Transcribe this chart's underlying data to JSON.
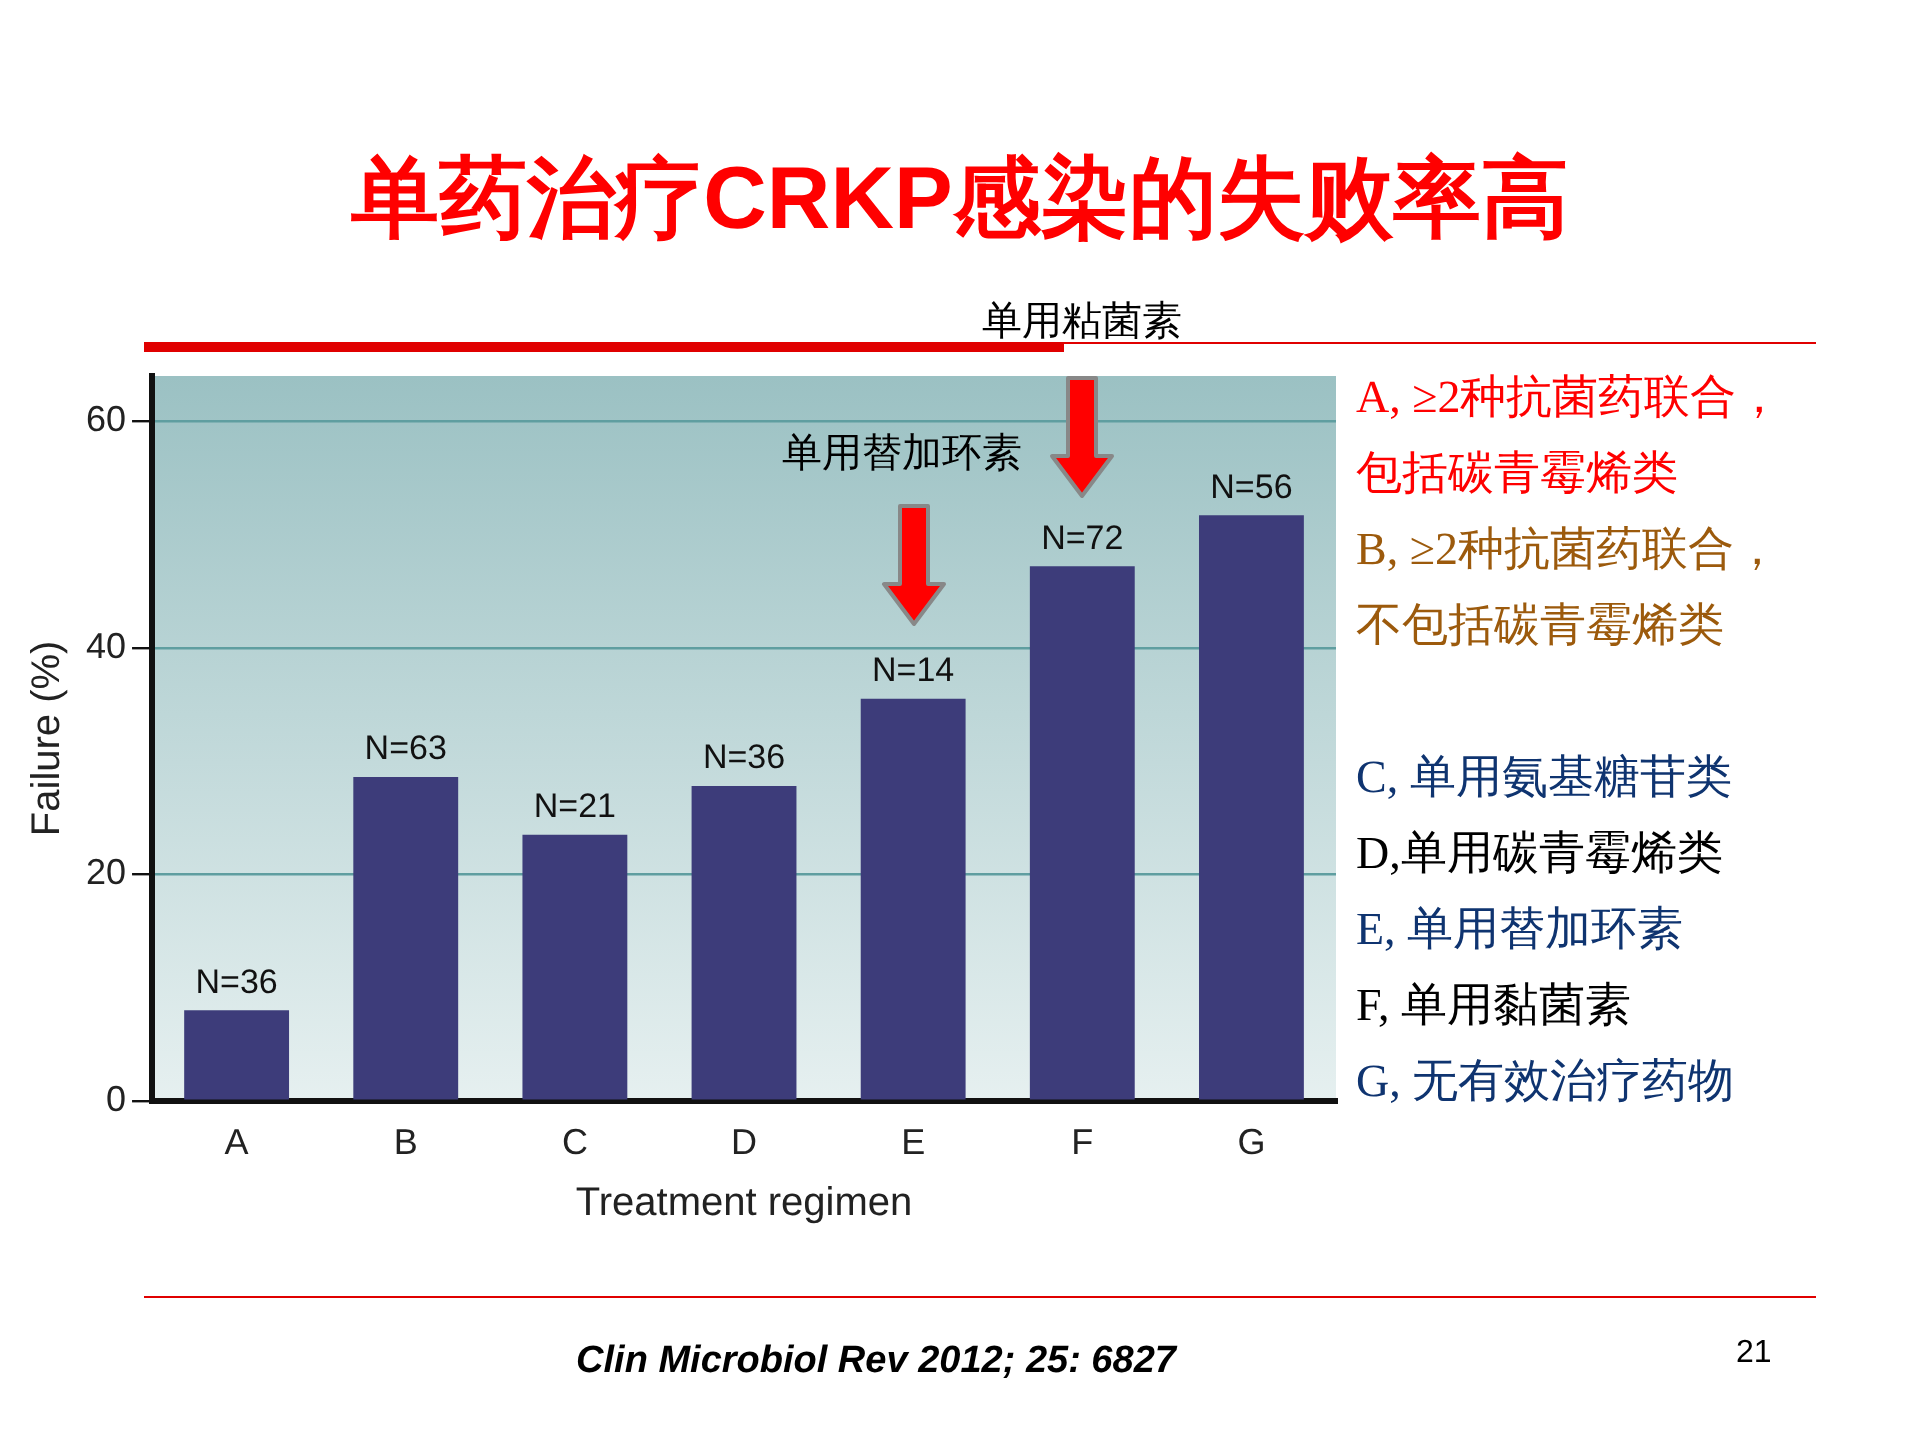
{
  "chart_data": {
    "type": "bar",
    "title": "单药治疗CRKP感染的失败率高",
    "xlabel": "Treatment regimen",
    "ylabel": "Failure (%)",
    "categories": [
      "A",
      "B",
      "C",
      "D",
      "E",
      "F",
      "G"
    ],
    "values": [
      8.0,
      28.6,
      23.5,
      27.8,
      35.5,
      47.2,
      51.7
    ],
    "color": "#3d3c7a",
    "ylim": [
      0,
      64
    ],
    "yticks": [
      0,
      20,
      40,
      60
    ],
    "grid": "y",
    "annotations": [
      {
        "text": "N=36",
        "x": "A",
        "y": 8.0
      },
      {
        "text": "N=63",
        "x": "B",
        "y": 28.6
      },
      {
        "text": "N=21",
        "x": "C",
        "y": 23.5
      },
      {
        "text": "N=36",
        "x": "D",
        "y": 27.8
      },
      {
        "text": "N=14",
        "x": "E",
        "y": 35.5
      },
      {
        "text": "N=72",
        "x": "F",
        "y": 47.2
      },
      {
        "text": "N=56",
        "x": "G",
        "y": 51.7
      },
      "单用替加环素",
      "单用粘菌素",
      "A, ≥2种抗菌药联合，包括碳青霉烯类",
      "B, ≥2种抗菌药联合，不包括碳青霉烯类",
      "C, 单用氨基糖苷类",
      "D,单用碳青霉烯类",
      "E, 单用替加环素",
      "F, 单用黏菌素",
      "G, 无有效治疗药物",
      "Clin Microbiol Rev 2012; 25: 6827",
      "21"
    ]
  }
}
